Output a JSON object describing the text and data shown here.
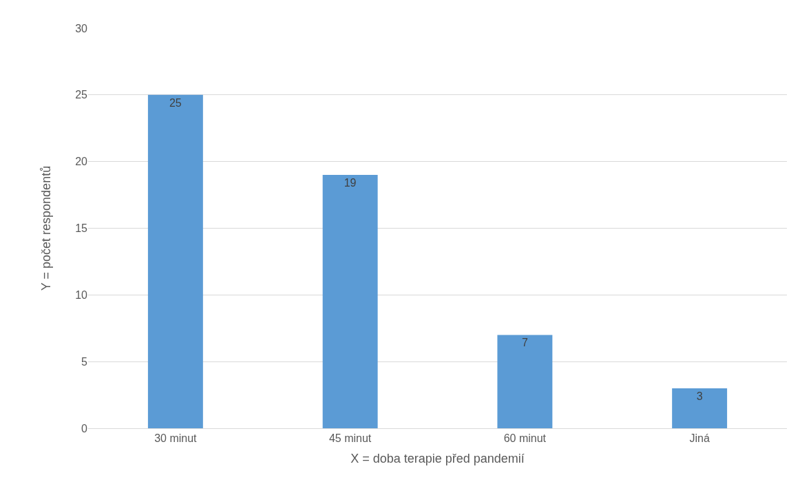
{
  "chart_data": {
    "type": "bar",
    "xlabel": "X = doba terapie před pandemií",
    "ylabel": "Y = počet respondentů",
    "categories": [
      "30 minut",
      "45 minut",
      "60 minut",
      "Jiná"
    ],
    "values": [
      25,
      19,
      7,
      3
    ],
    "color": "#5b9bd5",
    "ylim": [
      0,
      30
    ],
    "yticks": [
      0,
      5,
      10,
      15,
      20,
      25,
      30
    ],
    "grid": "y",
    "data_labels": true
  }
}
